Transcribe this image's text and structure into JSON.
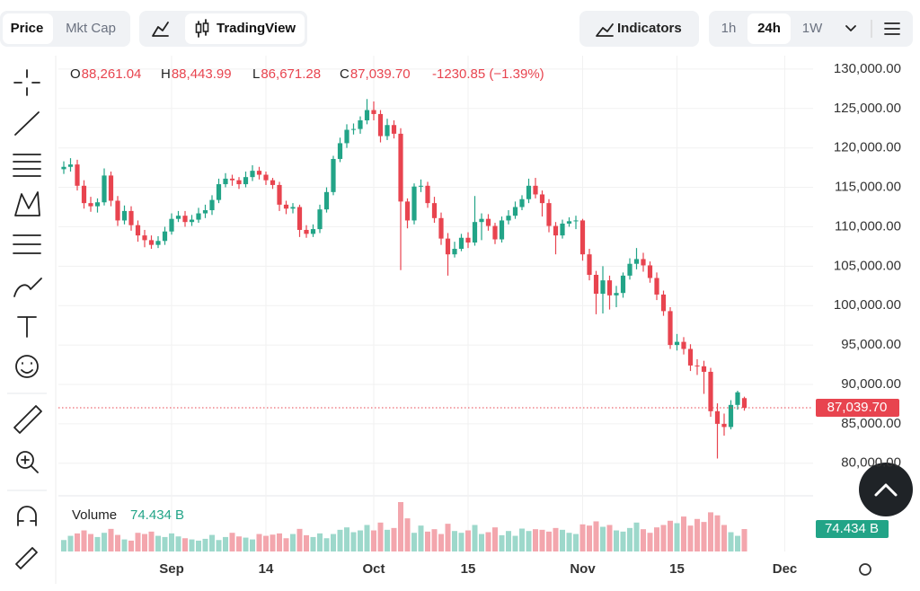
{
  "ui": {
    "tabs": [
      "Price",
      "Mkt Cap"
    ],
    "active_tab": 0,
    "chart_style": "TradingView",
    "indicators": "Indicators",
    "intervals": [
      "1h",
      "24h",
      "1W"
    ],
    "active_interval": 1
  },
  "chart_data": {
    "type": "candlestick",
    "x": [
      -16,
      -15,
      -14,
      -13,
      -12,
      -11,
      -10,
      -9,
      -8,
      -7,
      -6,
      -5,
      -4,
      -3,
      -2,
      -1,
      0,
      1,
      2,
      3,
      4,
      5,
      6,
      7,
      8,
      9,
      10,
      11,
      12,
      13,
      14,
      15,
      16,
      17,
      18,
      19,
      20,
      21,
      22,
      23,
      24,
      25,
      26,
      27,
      28,
      29,
      30,
      31,
      32,
      33,
      34,
      35,
      36,
      37,
      38,
      39,
      40,
      41,
      42,
      43,
      44,
      45,
      46,
      47,
      48,
      49,
      50,
      51,
      52,
      53,
      54,
      55,
      56,
      57,
      58,
      59,
      60,
      61,
      62,
      63,
      64,
      65,
      66,
      67,
      68,
      69,
      70,
      71,
      72,
      73,
      74,
      75,
      76,
      77,
      78,
      79,
      80,
      81,
      82,
      83,
      84,
      85
    ],
    "xlim": [
      -16.8,
      95.2
    ],
    "xticks": [
      {
        "value": 0,
        "label": "Sep"
      },
      14,
      {
        "value": 30,
        "label": "Oct"
      },
      {
        "value": 44,
        "label": "15"
      },
      {
        "value": 61,
        "label": "Nov"
      },
      {
        "value": 75,
        "label": "15"
      },
      {
        "value": 91,
        "label": "Dec"
      }
    ],
    "ylim": [
      76100,
      131700
    ],
    "yticks": [
      {
        "value": 80000,
        "label": "80,000.00"
      },
      {
        "value": 85000,
        "label": "85,000.00"
      },
      {
        "value": 90000,
        "label": "90,000.00"
      },
      {
        "value": 95000,
        "label": "95,000.00"
      },
      {
        "value": 100000,
        "label": "100,000.00"
      },
      {
        "value": 105000,
        "label": "105,000.00"
      },
      {
        "value": 110000,
        "label": "110,000.00"
      },
      {
        "value": 115000,
        "label": "115,000.00"
      },
      {
        "value": 120000,
        "label": "120,000.00"
      },
      {
        "value": 125000,
        "label": "125,000.00"
      },
      {
        "value": 130000,
        "label": "130,000.00"
      }
    ],
    "open": [
      117300,
      117600,
      117900,
      115200,
      113000,
      112600,
      113100,
      116500,
      113300,
      110800,
      112000,
      110200,
      108900,
      108300,
      107700,
      108200,
      109400,
      111000,
      111400,
      110600,
      110900,
      111700,
      112100,
      113400,
      115400,
      116100,
      115900,
      115400,
      116300,
      117100,
      116600,
      115900,
      115300,
      112800,
      112300,
      112500,
      109600,
      109100,
      109700,
      112200,
      114400,
      118600,
      120600,
      122300,
      122400,
      123500,
      124800,
      124300,
      121500,
      122900,
      121800,
      113200,
      110800,
      115100,
      115200,
      113000,
      111100,
      108500,
      106500,
      107200,
      108600,
      108000,
      110600,
      111000,
      110100,
      108400,
      110800,
      111400,
      112500,
      113500,
      115200,
      114100,
      113000,
      110100,
      108900,
      110400,
      110700,
      110800,
      106500,
      103900,
      101500,
      103200,
      101300,
      101600,
      103800,
      105300,
      105900,
      105100,
      103500,
      101400,
      99300,
      95000,
      95400,
      94500,
      92400,
      92300,
      91600,
      86600,
      85000,
      84600,
      87400,
      88261.04
    ],
    "high": [
      118300,
      118700,
      118500,
      115900,
      113800,
      113600,
      117400,
      117000,
      113900,
      112700,
      112600,
      110800,
      109600,
      108900,
      108800,
      110000,
      111700,
      112000,
      112000,
      111500,
      112400,
      112800,
      114000,
      116100,
      116800,
      116600,
      116300,
      117000,
      117800,
      117600,
      117000,
      116200,
      115700,
      113300,
      113000,
      112800,
      110200,
      110300,
      112800,
      115000,
      119000,
      121300,
      123000,
      123100,
      124000,
      126200,
      125900,
      124800,
      123700,
      123500,
      122500,
      113600,
      115500,
      116000,
      115700,
      113800,
      111800,
      109200,
      108100,
      109100,
      109300,
      113900,
      111700,
      111600,
      110500,
      111300,
      112100,
      113200,
      114000,
      116100,
      116200,
      114600,
      113500,
      110600,
      110900,
      111200,
      111400,
      111000,
      107200,
      104400,
      105000,
      103800,
      102500,
      104200,
      106000,
      107300,
      106700,
      105600,
      104200,
      101900,
      99800,
      96400,
      96000,
      95100,
      93200,
      93000,
      92100,
      87600,
      86300,
      88000,
      89200,
      88443.99
    ],
    "low": [
      116700,
      117000,
      114600,
      112300,
      111900,
      111800,
      112700,
      112600,
      110100,
      110300,
      109500,
      108100,
      107400,
      107200,
      107300,
      107700,
      109000,
      110600,
      110000,
      110100,
      110500,
      111100,
      111500,
      113000,
      115000,
      115200,
      114800,
      115000,
      115800,
      116000,
      115300,
      114800,
      112000,
      111600,
      111700,
      108700,
      108600,
      108700,
      109200,
      111800,
      114000,
      118200,
      120000,
      121700,
      121800,
      123000,
      123500,
      120700,
      121000,
      121200,
      104500,
      109800,
      110300,
      114400,
      112400,
      110500,
      107700,
      103800,
      106100,
      106900,
      107300,
      107600,
      108300,
      109500,
      107800,
      108000,
      110300,
      111000,
      112100,
      113000,
      113600,
      111300,
      109300,
      106500,
      108500,
      110000,
      109700,
      105700,
      103200,
      98900,
      99000,
      99500,
      99800,
      101000,
      103300,
      104600,
      104300,
      102900,
      100700,
      98700,
      94500,
      94300,
      93800,
      91700,
      91200,
      88800,
      85900,
      80600,
      83500,
      84300,
      86800,
      86671.28
    ],
    "close": [
      117600,
      117900,
      115200,
      113000,
      112600,
      113100,
      116500,
      113300,
      110800,
      112000,
      110200,
      108900,
      108300,
      107700,
      108200,
      109400,
      111000,
      111400,
      110600,
      110900,
      111700,
      112100,
      113400,
      115400,
      116100,
      115900,
      115400,
      116300,
      117100,
      116600,
      115900,
      115300,
      112800,
      112300,
      112500,
      109600,
      109100,
      109700,
      112200,
      114400,
      118600,
      120600,
      122300,
      122400,
      123500,
      124800,
      124300,
      121500,
      122900,
      121800,
      113200,
      110800,
      115100,
      115200,
      113000,
      111100,
      108500,
      106500,
      107200,
      108600,
      108000,
      110600,
      111000,
      110100,
      108400,
      110800,
      111400,
      112500,
      113500,
      115200,
      114100,
      113000,
      110100,
      108900,
      110400,
      110700,
      110800,
      106500,
      103900,
      101500,
      103200,
      101300,
      101600,
      103800,
      105300,
      105900,
      105100,
      103500,
      101400,
      99300,
      95000,
      95400,
      94500,
      92400,
      92300,
      91600,
      86600,
      85000,
      84600,
      87400,
      89000,
      87039.7
    ],
    "volume": [
      38,
      52,
      60,
      70,
      58,
      48,
      62,
      75,
      55,
      40,
      36,
      62,
      58,
      66,
      52,
      48,
      60,
      50,
      44,
      40,
      36,
      42,
      55,
      38,
      48,
      62,
      50,
      46,
      40,
      58,
      52,
      56,
      60,
      44,
      58,
      75,
      54,
      48,
      60,
      44,
      58,
      72,
      80,
      64,
      70,
      88,
      70,
      96,
      72,
      78,
      164,
      110,
      62,
      86,
      66,
      74,
      58,
      92,
      68,
      62,
      70,
      88,
      58,
      64,
      80,
      54,
      68,
      52,
      76,
      68,
      74,
      72,
      66,
      78,
      72,
      62,
      58,
      90,
      86,
      100,
      82,
      88,
      70,
      66,
      78,
      96,
      74,
      62,
      80,
      88,
      102,
      94,
      116,
      86,
      108,
      98,
      130,
      120,
      88,
      64,
      52,
      74.434
    ],
    "legend_keys": [
      "O",
      "H",
      "L",
      "C"
    ],
    "last_labels": [
      "88,261.04",
      "88,443.99",
      "86,671.28",
      "87,039.70"
    ],
    "change": -1230.85,
    "change_label": "-1230.85 (−1.39%)",
    "volume_title": "Volume",
    "last_volume_label": "74.434 B",
    "up_color": "#22a487",
    "down_color": "#e8444f",
    "volume_up_color": "#9dd8cb",
    "volume_down_color": "#f3a6ad",
    "grid": true
  }
}
